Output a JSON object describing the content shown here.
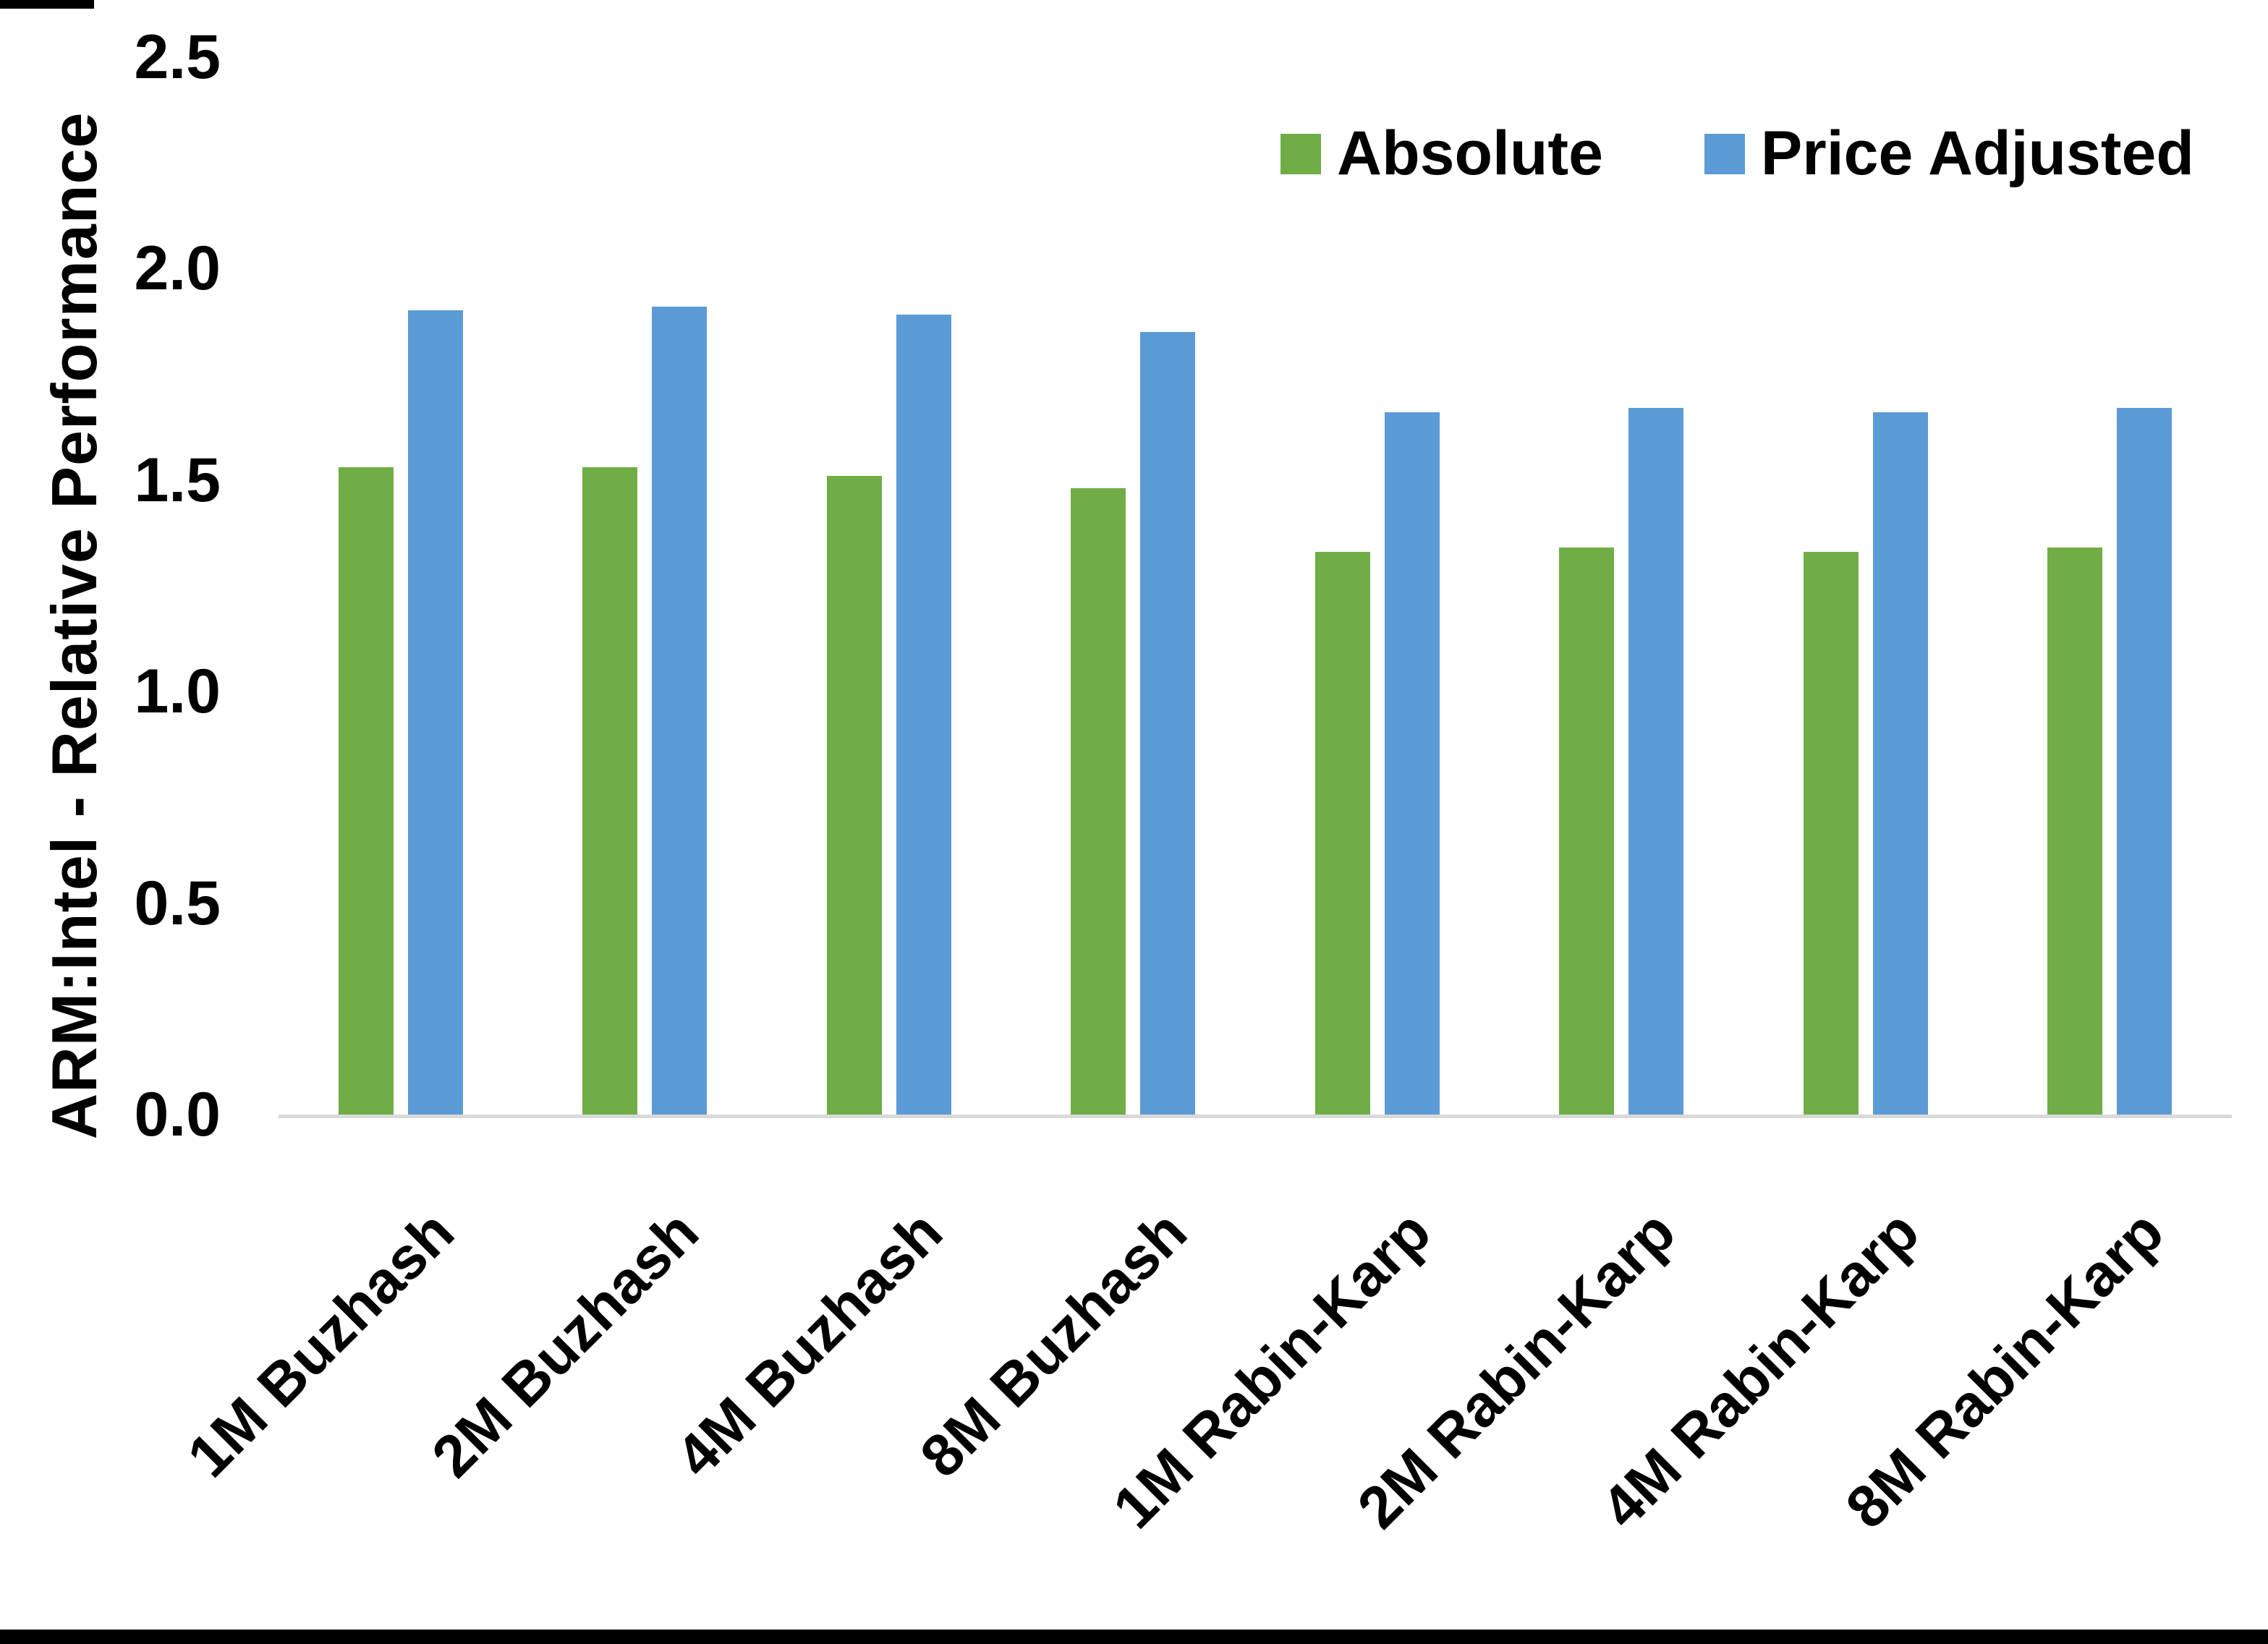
{
  "page": {
    "background": "#FFFFFF",
    "bottom_border_color": "#000000",
    "top_left_mark_color": "#000000"
  },
  "chart_data": {
    "type": "bar",
    "title": "",
    "xlabel": "",
    "ylabel": "ARM:Intel - Relative Performance",
    "ylim": [
      0,
      2.5
    ],
    "yticks": [
      "2.5",
      "2.0",
      "1.5",
      "1.0",
      "0.5",
      "0.0"
    ],
    "grid": false,
    "legend_position": "top-right",
    "axis_line_color": "#D9D9D9",
    "text_color": "#000000",
    "categories": [
      "1M Buzhash",
      "2M Buzhash",
      "4M Buzhash",
      "8M Buzhash",
      "1M Rabin-Karp",
      "2M Rabin-Karp",
      "4M Rabin-Karp",
      "8M Rabin-Karp"
    ],
    "series": [
      {
        "name": "Absolute",
        "color": "#70AD47",
        "values": [
          1.53,
          1.53,
          1.51,
          1.48,
          1.33,
          1.34,
          1.33,
          1.34
        ]
      },
      {
        "name": "Price Adjusted",
        "color": "#5B9BD5",
        "values": [
          1.9,
          1.91,
          1.89,
          1.85,
          1.66,
          1.67,
          1.66,
          1.67
        ]
      }
    ]
  }
}
